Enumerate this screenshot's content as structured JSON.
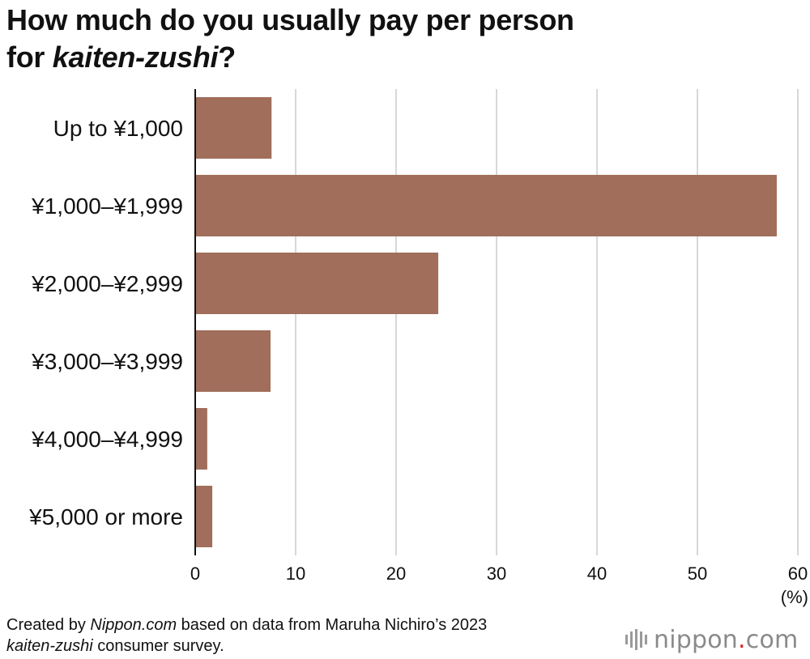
{
  "title": {
    "line1": "How much do you usually pay per person",
    "line2_prefix": "for ",
    "line2_italic": "kaiten-zushi",
    "line2_suffix": "?"
  },
  "chart_data": {
    "type": "bar",
    "orientation": "horizontal",
    "categories": [
      "Up to ¥1,000",
      "¥1,000–¥1,999",
      "¥2,000–¥2,999",
      "¥3,000–¥3,999",
      "¥4,000–¥4,999",
      "¥5,000 or more"
    ],
    "values": [
      7.6,
      57.9,
      24.2,
      7.5,
      1.2,
      1.7
    ],
    "xlim": [
      0,
      60
    ],
    "xticks": [
      0,
      10,
      20,
      30,
      40,
      50,
      60
    ],
    "xlabel": "(%)",
    "ylabel": "",
    "grid": true,
    "bar_color": "#a06e5a"
  },
  "source": {
    "part1": "Created by ",
    "part2_italic": "Nippon.com",
    "part3": " based on data from Maruha Nichiro’s 2023",
    "part4_italic": "kaiten-zushi",
    "part5": " consumer survey."
  },
  "logo": {
    "text_main": "nippon",
    "text_dot": ".",
    "text_end": "com"
  }
}
